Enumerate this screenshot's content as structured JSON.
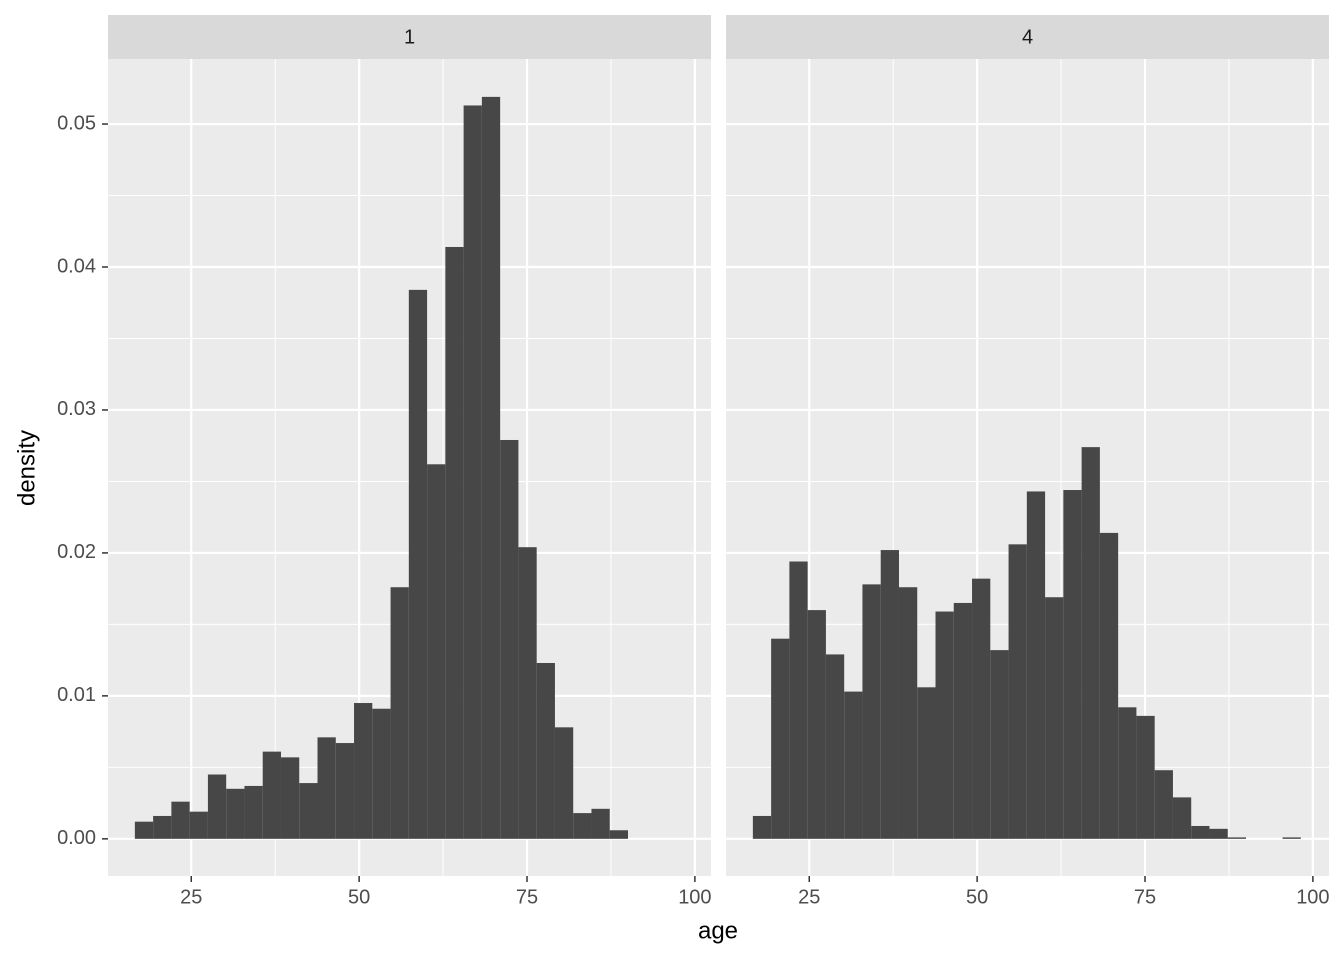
{
  "chart_data": {
    "type": "histogram",
    "xlabel": "age",
    "ylabel": "density",
    "color": "#474747",
    "bins": [
      16.6,
      19.32,
      22.04,
      24.76,
      27.48,
      30.2,
      32.92,
      35.64,
      38.36,
      41.08,
      43.8,
      46.52,
      49.24,
      51.96,
      54.68,
      57.4,
      60.12,
      62.84,
      65.56,
      68.28,
      71.0,
      73.72,
      76.44,
      79.16,
      81.88,
      84.6,
      87.32,
      90.04,
      92.76,
      95.48,
      98.2
    ],
    "facets": [
      {
        "label": "1",
        "values": [
          0.0012,
          0.0016,
          0.0026,
          0.0019,
          0.0045,
          0.0035,
          0.0037,
          0.0061,
          0.0057,
          0.0039,
          0.0071,
          0.0067,
          0.0095,
          0.0091,
          0.0176,
          0.0384,
          0.0262,
          0.0414,
          0.0513,
          0.0519,
          0.0279,
          0.0204,
          0.0123,
          0.0078,
          0.0018,
          0.0021,
          0.0006,
          0,
          0,
          0
        ]
      },
      {
        "label": "4",
        "values": [
          0.0016,
          0.014,
          0.0194,
          0.016,
          0.0129,
          0.0103,
          0.0178,
          0.0202,
          0.0176,
          0.0106,
          0.0159,
          0.0165,
          0.0182,
          0.0132,
          0.0206,
          0.0243,
          0.0169,
          0.0244,
          0.0274,
          0.0214,
          0.0092,
          0.0086,
          0.0048,
          0.0029,
          0.0009,
          0.0007,
          0.0001,
          0,
          0,
          0.0001
        ]
      }
    ],
    "xlim": [
      12.6,
      102.4
    ],
    "ylim": [
      -0.0026,
      0.05455
    ],
    "xticks": [
      25,
      50,
      75,
      100
    ],
    "xminor": [
      37.5,
      62.5,
      87.5
    ],
    "yticks": [
      {
        "value": 0,
        "label": "0.00"
      },
      0.01,
      0.02,
      0.03,
      0.04,
      0.05
    ],
    "yminor": [
      0.005,
      0.015,
      0.025,
      0.035,
      0.045
    ],
    "grid": true
  }
}
